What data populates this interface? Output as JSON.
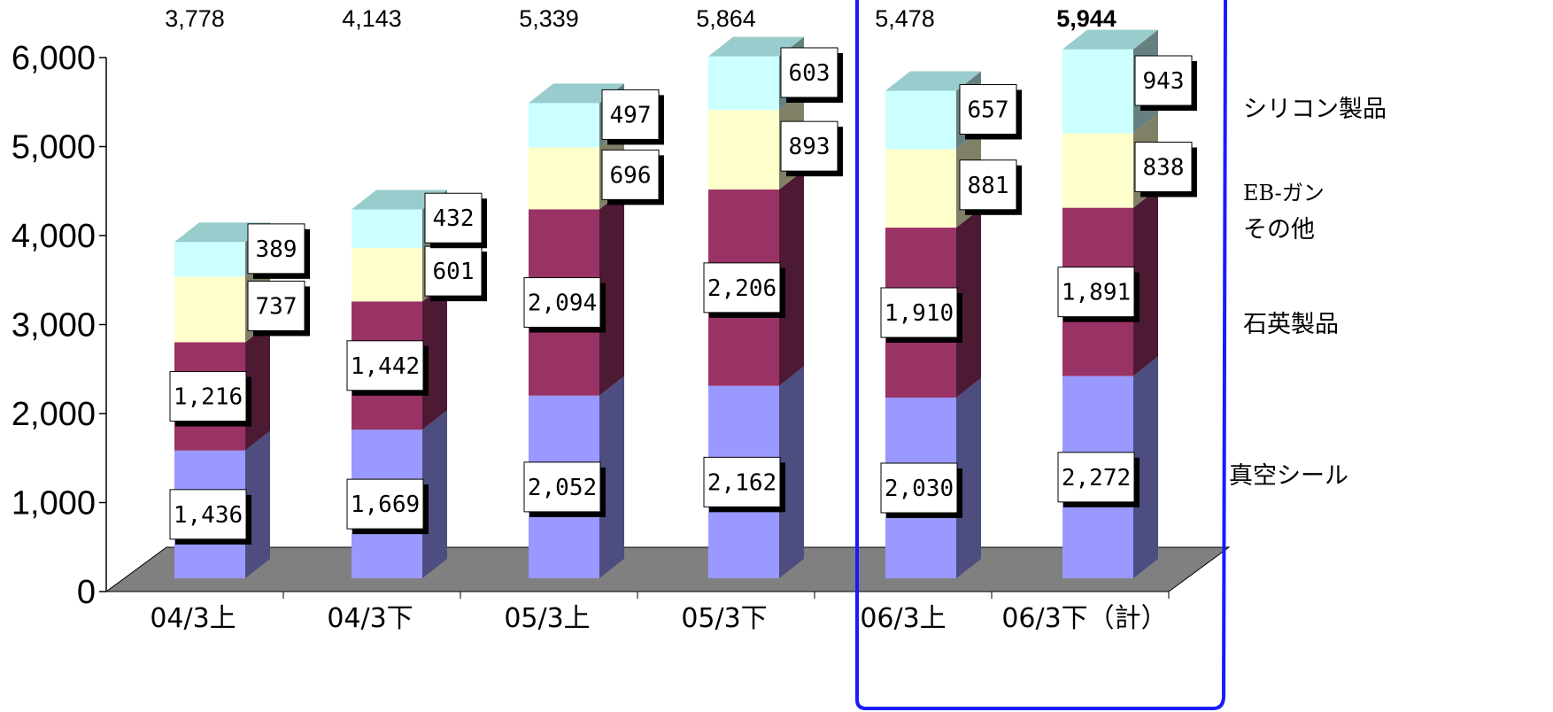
{
  "chart_data": {
    "type": "bar",
    "stacked": true,
    "three_d": true,
    "title": "",
    "xlabel": "",
    "ylabel": "",
    "ylim": [
      0,
      6000
    ],
    "y_ticks": [
      "0",
      "1,000",
      "2,000",
      "3,000",
      "4,000",
      "5,000",
      "6,000"
    ],
    "y_tick_values": [
      0,
      1000,
      2000,
      3000,
      4000,
      5000,
      6000
    ],
    "grid": false,
    "legend_position": "right",
    "categories": [
      "04/3上",
      "04/3下",
      "05/3上",
      "05/3下",
      "06/3上",
      "06/3下（計）"
    ],
    "totals": [
      3778,
      4143,
      5339,
      5864,
      5478,
      5944
    ],
    "totals_text": [
      "3,778",
      "4,143",
      "5,339",
      "5,864",
      "5,478",
      "5,944"
    ],
    "bold_total_index": 5,
    "highlight_box": {
      "categories": [
        "06/3上",
        "06/3下（計）"
      ],
      "color": "#1a1aff"
    },
    "series": [
      {
        "name": "真空シール",
        "values": [
          1436,
          1669,
          2052,
          2162,
          2030,
          2272
        ],
        "labels": [
          "1,436",
          "1,669",
          "2,052",
          "2,162",
          "2,030",
          "2,272"
        ],
        "color": "#9999ff",
        "side_color": "#4d4d80"
      },
      {
        "name": "石英製品",
        "values": [
          1216,
          1442,
          2094,
          2206,
          1910,
          1891
        ],
        "labels": [
          "1,216",
          "1,442",
          "2,094",
          "2,206",
          "1,910",
          "1,891"
        ],
        "color": "#993366",
        "side_color": "#4d1a33"
      },
      {
        "name": "EB-ガン その他",
        "name_lines": [
          "EB-ガン",
          "その他"
        ],
        "values": [
          737,
          601,
          696,
          893,
          881,
          838
        ],
        "labels": [
          "737",
          "601",
          "696",
          "893",
          "881",
          "838"
        ],
        "color": "#ffffcc",
        "side_color": "#808066"
      },
      {
        "name": "シリコン製品",
        "values": [
          389,
          432,
          497,
          603,
          657,
          943
        ],
        "labels": [
          "389",
          "432",
          "497",
          "603",
          "657",
          "943"
        ],
        "color": "#ccffff",
        "side_color": "#668080",
        "top_color": "#99cccc"
      }
    ],
    "floor_color": "#808080"
  }
}
